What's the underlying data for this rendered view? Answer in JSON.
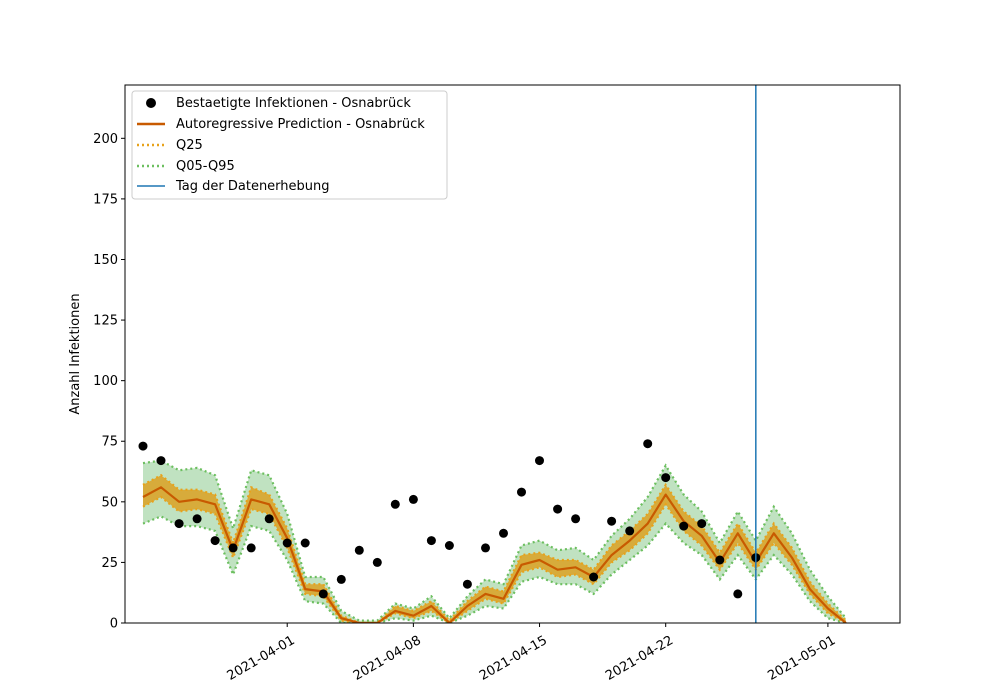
{
  "chart_data": {
    "type": "line",
    "xlabel": "",
    "ylabel": "Anzahl Infektionen",
    "xlim": [
      "2021-03-23",
      "2021-05-05"
    ],
    "ylim": [
      0,
      222
    ],
    "x_tick_labels": [
      "2021-04-01",
      "2021-04-08",
      "2021-04-15",
      "2021-04-22",
      "2021-05-01"
    ],
    "y_tick_labels": [
      "0",
      "25",
      "50",
      "75",
      "100",
      "125",
      "150",
      "175",
      "200"
    ],
    "y_ticks": [
      0,
      25,
      50,
      75,
      100,
      125,
      150,
      175,
      200
    ],
    "legend": {
      "placement": "upper-left",
      "entries": [
        "Bestaetigte Infektionen - Osnabrück",
        "Autoregressive Prediction - Osnabrück",
        "Q25",
        "Q05-Q95",
        "Tag der Datenerhebung"
      ]
    },
    "vline_date": "2021-04-27",
    "colors": {
      "observed": "#000000",
      "prediction": "#c85a00",
      "q25_fill": "#d9a52c",
      "q25_line": "#e8a21a",
      "q05_fill": "#bde0be",
      "q05_line": "#6cbf5f",
      "vline": "#1f77b4"
    },
    "observed": {
      "name": "Bestaetigte Infektionen - Osnabrück",
      "x": [
        "2021-03-24",
        "2021-03-25",
        "2021-03-26",
        "2021-03-27",
        "2021-03-28",
        "2021-03-29",
        "2021-03-30",
        "2021-03-31",
        "2021-04-01",
        "2021-04-02",
        "2021-04-03",
        "2021-04-04",
        "2021-04-05",
        "2021-04-06",
        "2021-04-07",
        "2021-04-08",
        "2021-04-09",
        "2021-04-10",
        "2021-04-11",
        "2021-04-12",
        "2021-04-13",
        "2021-04-14",
        "2021-04-15",
        "2021-04-16",
        "2021-04-17",
        "2021-04-18",
        "2021-04-19",
        "2021-04-20",
        "2021-04-21",
        "2021-04-22",
        "2021-04-23",
        "2021-04-24",
        "2021-04-25",
        "2021-04-26",
        "2021-04-27",
        "2021-04-28"
      ],
      "y": [
        73,
        67,
        41,
        43,
        34,
        31,
        31,
        43,
        33,
        33,
        12,
        18,
        30,
        25,
        49,
        51,
        34,
        32,
        16,
        31,
        37,
        54,
        67,
        47,
        43,
        19,
        42,
        38,
        74,
        60,
        40,
        41,
        26,
        12,
        27,
        null
      ]
    },
    "prediction": {
      "name": "Autoregressive Prediction - Osnabrück",
      "x": [
        "2021-03-24",
        "2021-03-25",
        "2021-03-26",
        "2021-03-27",
        "2021-03-28",
        "2021-03-29",
        "2021-03-30",
        "2021-03-31",
        "2021-04-01",
        "2021-04-02",
        "2021-04-03",
        "2021-04-04",
        "2021-04-05",
        "2021-04-06",
        "2021-04-07",
        "2021-04-08",
        "2021-04-09",
        "2021-04-10",
        "2021-04-11",
        "2021-04-12",
        "2021-04-13",
        "2021-04-14",
        "2021-04-15",
        "2021-04-16",
        "2021-04-17",
        "2021-04-18",
        "2021-04-19",
        "2021-04-20",
        "2021-04-21",
        "2021-04-22",
        "2021-04-23",
        "2021-04-24",
        "2021-04-25",
        "2021-04-26",
        "2021-04-27",
        "2021-04-28",
        "2021-04-29",
        "2021-04-30",
        "2021-05-01",
        "2021-05-02"
      ],
      "y": [
        52,
        56,
        50,
        51,
        49,
        30,
        51,
        49,
        35,
        14,
        13,
        2,
        0,
        0,
        5,
        3,
        7,
        0,
        7,
        12,
        10,
        24,
        26,
        22,
        23,
        19,
        28,
        34,
        41,
        53,
        42,
        36,
        25,
        37,
        25,
        37,
        27,
        14,
        6,
        0
      ]
    },
    "q25": {
      "name": "Q25",
      "lower": [
        48,
        52,
        46,
        47,
        45,
        27,
        47,
        45,
        31,
        12,
        11,
        1,
        0,
        0,
        4,
        2,
        5,
        0,
        5,
        10,
        8,
        21,
        23,
        19,
        20,
        16,
        25,
        30,
        37,
        49,
        38,
        32,
        22,
        33,
        22,
        33,
        24,
        12,
        4,
        0
      ],
      "upper": [
        57,
        61,
        55,
        55,
        53,
        33,
        56,
        53,
        39,
        16,
        16,
        3,
        0,
        0,
        7,
        5,
        9,
        1,
        9,
        15,
        13,
        28,
        29,
        26,
        26,
        22,
        32,
        38,
        45,
        57,
        46,
        40,
        29,
        41,
        29,
        41,
        31,
        17,
        8,
        1
      ]
    },
    "q05_q95": {
      "name": "Q05-Q95",
      "lower": [
        41,
        44,
        40,
        40,
        38,
        20,
        40,
        38,
        26,
        9,
        8,
        0,
        0,
        0,
        2,
        1,
        3,
        0,
        3,
        7,
        6,
        17,
        19,
        16,
        16,
        12,
        20,
        26,
        32,
        41,
        33,
        28,
        18,
        28,
        18,
        28,
        20,
        9,
        2,
        0
      ],
      "upper": [
        66,
        67,
        63,
        64,
        61,
        39,
        63,
        61,
        45,
        19,
        19,
        5,
        1,
        1,
        8,
        6,
        11,
        2,
        11,
        18,
        16,
        32,
        34,
        30,
        31,
        26,
        36,
        43,
        52,
        65,
        53,
        46,
        33,
        46,
        34,
        48,
        37,
        22,
        11,
        2
      ]
    }
  }
}
